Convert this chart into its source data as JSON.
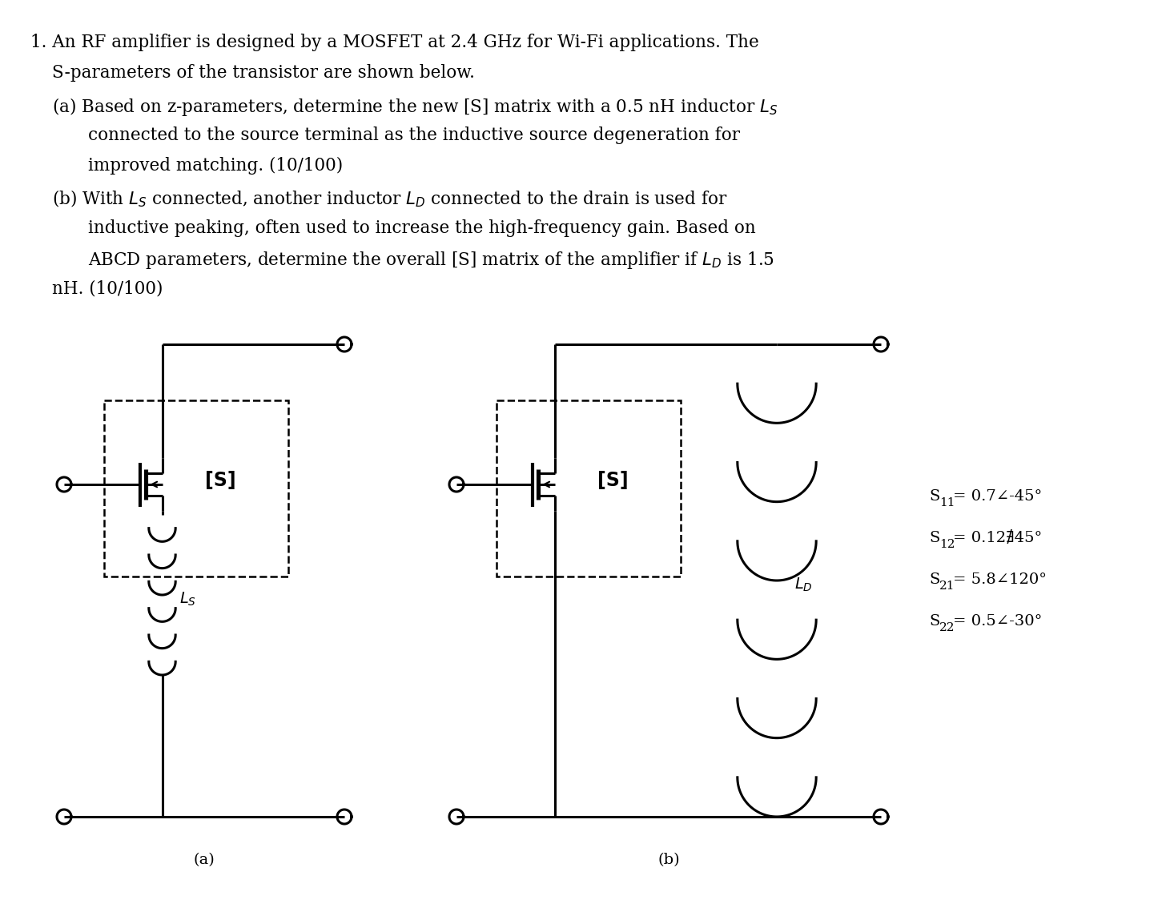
{
  "bg_color": "#ffffff",
  "text_color": "#000000",
  "font_size_body": 15.5,
  "font_size_label": 14,
  "font_size_sparam": 14,
  "font_size_circuit": 15,
  "s_params": [
    [
      "S",
      "11",
      "= 0.7∠-45°"
    ],
    [
      "S",
      "12",
      "= 0.12∄45°"
    ],
    [
      "S",
      "21",
      "= 5.8∠120°"
    ],
    [
      "S",
      "22",
      "= 0.5∠-30°"
    ]
  ],
  "label_a": "(a)",
  "label_b": "(b)"
}
